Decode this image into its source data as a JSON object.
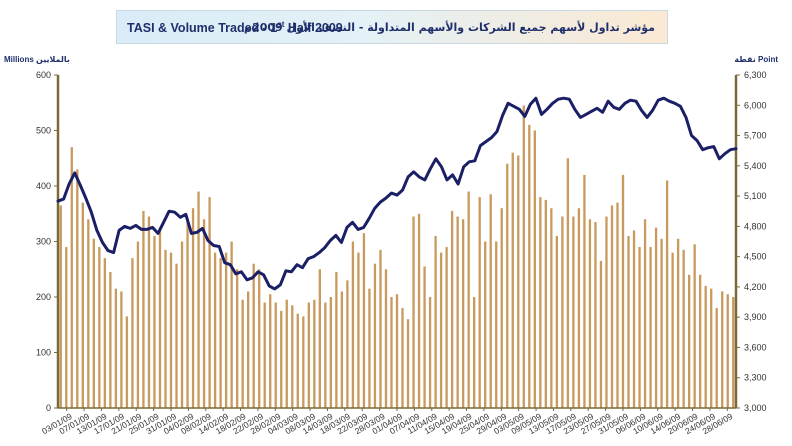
{
  "title": {
    "en_main": "TASI & Volume Traded - 1",
    "en_sup": "st",
    "en_tail": " Half 2009",
    "ar": "مؤشر تداول لأسهم جميع الشركات والأسهم المتداولة - النصف الأول 2009م"
  },
  "left_unit": {
    "en": "Millions",
    "ar": "بالملايين"
  },
  "right_unit": {
    "en": "Point",
    "ar": "نقطة"
  },
  "colors": {
    "bar": "#c99a5e",
    "line": "#1a1f66",
    "axis": "#7a6a3a",
    "plot_bg": "#ffffff"
  },
  "chart_data": {
    "type": "bar",
    "title": "TASI & Volume Traded - 1st Half 2009",
    "ylabel_left": "Millions",
    "ylabel_right": "Point",
    "ylim_left": [
      0,
      600
    ],
    "ylim_right": [
      3000,
      6300
    ],
    "yticks_left": [
      "0",
      "100",
      "200",
      "300",
      "400",
      "500",
      "600"
    ],
    "yticks_right": [
      "3,000",
      "3,300",
      "3,600",
      "3,900",
      "4,200",
      "4,500",
      "4,800",
      "5,100",
      "5,400",
      "5,700",
      "6,000",
      "6,300"
    ],
    "xtick_labels": [
      "03/01/09",
      "07/01/09",
      "13/01/09",
      "17/01/09",
      "21/01/09",
      "25/01/09",
      "31/01/09",
      "04/02/09",
      "08/02/09",
      "14/02/09",
      "18/02/09",
      "22/02/09",
      "28/02/09",
      "04/03/09",
      "08/03/09",
      "14/03/09",
      "18/03/09",
      "22/03/09",
      "28/03/09",
      "01/04/09",
      "07/04/09",
      "11/04/09",
      "15/04/09",
      "19/04/09",
      "25/04/09",
      "29/04/09",
      "03/05/09",
      "09/05/09",
      "13/05/09",
      "17/05/09",
      "23/05/09",
      "27/05/09",
      "31/05/09",
      "06/06/09",
      "10/06/09",
      "14/06/09",
      "20/06/09",
      "24/06/09",
      "28/06/09"
    ],
    "legend": "none",
    "grid": false,
    "series": [
      {
        "type": "bar",
        "axis": "left",
        "values": [
          365,
          290,
          470,
          430,
          370,
          340,
          305,
          290,
          270,
          245,
          215,
          210,
          165,
          270,
          300,
          355,
          345,
          310,
          320,
          285,
          280,
          260,
          300,
          335,
          360,
          390,
          340,
          380,
          280,
          270,
          280,
          300,
          250,
          195,
          210,
          260,
          250,
          190,
          205,
          190,
          175,
          195,
          185,
          170,
          165,
          190,
          195,
          250,
          190,
          200,
          245,
          210,
          230,
          300,
          280,
          315,
          215,
          260,
          285,
          250,
          200,
          205,
          180,
          160,
          345,
          350,
          255,
          200,
          310,
          280,
          290,
          355,
          345,
          340,
          390,
          200,
          380,
          300,
          385,
          300,
          360,
          440,
          460,
          455,
          545,
          510,
          500,
          380,
          375,
          360,
          310,
          345,
          450,
          345,
          360,
          420,
          340,
          335,
          265,
          345,
          365,
          370,
          420,
          310,
          320,
          290,
          340,
          290,
          325,
          305,
          410,
          280,
          305,
          285,
          240,
          295,
          240,
          220,
          215,
          180,
          210,
          205,
          200
        ]
      },
      {
        "type": "line",
        "axis": "right",
        "values": [
          5050,
          5070,
          5220,
          5330,
          5210,
          5080,
          4940,
          4760,
          4640,
          4560,
          4540,
          4760,
          4800,
          4780,
          4810,
          4770,
          4770,
          4790,
          4730,
          4840,
          4950,
          4940,
          4890,
          4920,
          4730,
          4740,
          4780,
          4660,
          4610,
          4600,
          4440,
          4420,
          4330,
          4350,
          4270,
          4290,
          4350,
          4320,
          4210,
          4180,
          4220,
          4360,
          4350,
          4420,
          4390,
          4480,
          4500,
          4540,
          4590,
          4660,
          4710,
          4640,
          4790,
          4840,
          4770,
          4790,
          4880,
          4980,
          5040,
          5080,
          5130,
          5110,
          5160,
          5290,
          5340,
          5290,
          5260,
          5370,
          5470,
          5390,
          5260,
          5310,
          5220,
          5390,
          5440,
          5450,
          5600,
          5640,
          5680,
          5740,
          5900,
          6020,
          5990,
          5960,
          5890,
          6010,
          6070,
          5910,
          5960,
          6020,
          6060,
          6070,
          6060,
          5960,
          5880,
          5910,
          5940,
          5970,
          5930,
          6040,
          5980,
          5960,
          6020,
          6050,
          6040,
          5950,
          5880,
          5950,
          6050,
          6070,
          6040,
          6020,
          5990,
          5880,
          5700,
          5650,
          5560,
          5580,
          5590,
          5470,
          5520,
          5560,
          5570
        ]
      }
    ]
  }
}
